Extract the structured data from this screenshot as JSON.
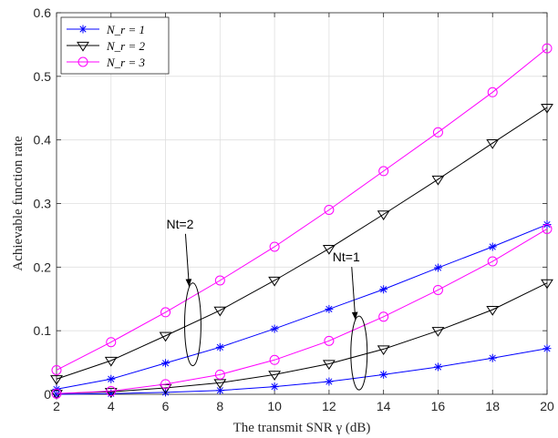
{
  "chart_data": {
    "type": "line",
    "title": "",
    "xlabel": "The transmit SNR γ (dB)",
    "ylabel": "Achievable function rate",
    "xlim": [
      2,
      20
    ],
    "ylim": [
      0,
      0.6
    ],
    "xticks": [
      2,
      4,
      6,
      8,
      10,
      12,
      14,
      16,
      18,
      20
    ],
    "yticks": [
      0,
      0.1,
      0.2,
      0.3,
      0.4,
      0.5,
      0.6
    ],
    "grid": true,
    "legend_position": "top-left",
    "legend": [
      "N_r = 1",
      "N_r = 2",
      "N_r = 3"
    ],
    "x": [
      2,
      4,
      6,
      8,
      10,
      12,
      14,
      16,
      18,
      20
    ],
    "series": [
      {
        "name": "N_r = 1",
        "group": "Nt=2",
        "color": "#0000ff",
        "marker": "asterisk",
        "values": [
          0.008,
          0.024,
          0.049,
          0.074,
          0.103,
          0.134,
          0.165,
          0.199,
          0.232,
          0.267
        ]
      },
      {
        "name": "N_r = 2",
        "group": "Nt=2",
        "color": "#000000",
        "marker": "triangle-down",
        "values": [
          0.024,
          0.053,
          0.092,
          0.132,
          0.179,
          0.229,
          0.283,
          0.338,
          0.395,
          0.451
        ]
      },
      {
        "name": "N_r = 3",
        "group": "Nt=2",
        "color": "#ff00ff",
        "marker": "circle",
        "values": [
          0.038,
          0.082,
          0.129,
          0.179,
          0.232,
          0.29,
          0.351,
          0.412,
          0.475,
          0.544
        ]
      },
      {
        "name": "N_r = 1",
        "group": "Nt=1",
        "color": "#0000ff",
        "marker": "asterisk",
        "values": [
          0.0,
          0.001,
          0.003,
          0.006,
          0.012,
          0.02,
          0.031,
          0.043,
          0.057,
          0.072
        ]
      },
      {
        "name": "N_r = 2",
        "group": "Nt=1",
        "color": "#000000",
        "marker": "triangle-down",
        "values": [
          0.001,
          0.004,
          0.01,
          0.018,
          0.031,
          0.048,
          0.071,
          0.1,
          0.133,
          0.175
        ]
      },
      {
        "name": "N_r = 3",
        "group": "Nt=1",
        "color": "#ff00ff",
        "marker": "circle",
        "values": [
          0.001,
          0.005,
          0.016,
          0.031,
          0.054,
          0.084,
          0.122,
          0.164,
          0.209,
          0.26
        ]
      }
    ],
    "annotations": [
      {
        "text": "Nt=2",
        "ellipse_center": [
          7,
          0.11
        ],
        "ellipse_radii": [
          0.3,
          0.065
        ]
      },
      {
        "text": "Nt=1",
        "ellipse_center": [
          13.1,
          0.065
        ],
        "ellipse_radii": [
          0.3,
          0.058
        ]
      }
    ]
  }
}
